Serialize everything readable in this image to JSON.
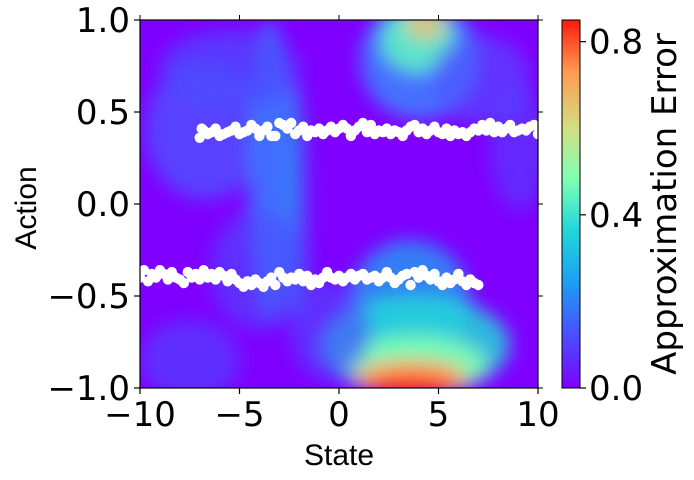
{
  "chart_data": {
    "type": "heatmap",
    "xlabel": "State",
    "ylabel": "Action",
    "xlim": [
      -10,
      10
    ],
    "ylim": [
      -1,
      1
    ],
    "x_ticks": [
      -10,
      -5,
      0,
      5,
      10
    ],
    "x_tick_labels": [
      "−10",
      "−5",
      "0",
      "5",
      "10"
    ],
    "y_ticks": [
      -1.0,
      -0.5,
      0.0,
      0.5,
      1.0
    ],
    "y_tick_labels": [
      "−1.0",
      "−0.5",
      "0.0",
      "0.5",
      "1.0"
    ],
    "colorbar": {
      "label": "Approximation Error",
      "range": [
        0,
        0.85
      ],
      "ticks": [
        0.0,
        0.4,
        0.8
      ],
      "tick_labels": [
        "0.0",
        "0.4",
        "0.8"
      ],
      "colormap": [
        "#7f00ff",
        "#4b4dff",
        "#1e9ff2",
        "#21d8d8",
        "#80ffb4",
        "#d4dd80",
        "#ff9a52",
        "#ff1a0d"
      ]
    },
    "error_hotspots": [
      {
        "x": 3.8,
        "y": -1.0,
        "value": 0.82
      },
      {
        "x": 4.3,
        "y": 1.0,
        "value": 0.55
      },
      {
        "x": -4.5,
        "y": 0.1,
        "value": 0.22
      },
      {
        "x": -3.5,
        "y": -0.85,
        "value": 0.15
      }
    ],
    "scatter_series": [
      {
        "color": "#ffffff",
        "points": [
          [
            -7.0,
            0.36
          ],
          [
            -6.9,
            0.41
          ],
          [
            -6.8,
            0.4
          ],
          [
            -6.6,
            0.38
          ],
          [
            -6.4,
            0.39
          ],
          [
            -6.2,
            0.41
          ],
          [
            -6.0,
            0.37
          ],
          [
            -5.8,
            0.38
          ],
          [
            -5.6,
            0.39
          ],
          [
            -5.4,
            0.4
          ],
          [
            -5.2,
            0.42
          ],
          [
            -5.0,
            0.38
          ],
          [
            -4.8,
            0.39
          ],
          [
            -4.6,
            0.4
          ],
          [
            -4.4,
            0.43
          ],
          [
            -4.2,
            0.41
          ],
          [
            -4.0,
            0.37
          ],
          [
            -3.8,
            0.4
          ],
          [
            -3.6,
            0.42
          ],
          [
            -3.4,
            0.37
          ],
          [
            -3.2,
            0.37
          ],
          [
            -3.0,
            0.44
          ],
          [
            -2.8,
            0.43
          ],
          [
            -2.6,
            0.41
          ],
          [
            -2.4,
            0.44
          ],
          [
            -2.2,
            0.38
          ],
          [
            -2.0,
            0.4
          ],
          [
            -1.8,
            0.42
          ],
          [
            -1.6,
            0.37
          ],
          [
            -1.4,
            0.4
          ],
          [
            -1.2,
            0.39
          ],
          [
            -1.0,
            0.41
          ],
          [
            -0.8,
            0.38
          ],
          [
            -0.6,
            0.4
          ],
          [
            -0.4,
            0.42
          ],
          [
            -0.2,
            0.39
          ],
          [
            0.0,
            0.41
          ],
          [
            0.2,
            0.43
          ],
          [
            0.4,
            0.41
          ],
          [
            0.6,
            0.37
          ],
          [
            0.8,
            0.4
          ],
          [
            1.0,
            0.42
          ],
          [
            1.2,
            0.44
          ],
          [
            1.4,
            0.39
          ],
          [
            1.6,
            0.43
          ],
          [
            1.8,
            0.38
          ],
          [
            2.0,
            0.4
          ],
          [
            2.2,
            0.39
          ],
          [
            2.4,
            0.41
          ],
          [
            2.6,
            0.38
          ],
          [
            2.8,
            0.4
          ],
          [
            3.0,
            0.39
          ],
          [
            3.2,
            0.37
          ],
          [
            3.4,
            0.4
          ],
          [
            3.6,
            0.42
          ],
          [
            3.8,
            0.43
          ],
          [
            4.0,
            0.39
          ],
          [
            4.2,
            0.41
          ],
          [
            4.4,
            0.38
          ],
          [
            4.6,
            0.4
          ],
          [
            4.8,
            0.42
          ],
          [
            5.0,
            0.39
          ],
          [
            5.2,
            0.38
          ],
          [
            5.4,
            0.41
          ],
          [
            5.6,
            0.37
          ],
          [
            5.8,
            0.4
          ],
          [
            6.0,
            0.38
          ],
          [
            6.2,
            0.39
          ],
          [
            6.4,
            0.37
          ],
          [
            6.6,
            0.39
          ],
          [
            6.8,
            0.41
          ],
          [
            7.0,
            0.4
          ],
          [
            7.2,
            0.43
          ],
          [
            7.4,
            0.4
          ],
          [
            7.6,
            0.44
          ],
          [
            7.8,
            0.39
          ],
          [
            8.0,
            0.42
          ],
          [
            8.2,
            0.39
          ],
          [
            8.4,
            0.41
          ],
          [
            8.6,
            0.43
          ],
          [
            8.8,
            0.39
          ],
          [
            9.0,
            0.4
          ],
          [
            9.2,
            0.41
          ],
          [
            9.4,
            0.4
          ],
          [
            9.6,
            0.42
          ],
          [
            9.8,
            0.43
          ],
          [
            10.0,
            0.38
          ]
        ]
      },
      {
        "color": "#ffffff",
        "points": [
          [
            -10.0,
            -0.4
          ],
          [
            -9.8,
            -0.36
          ],
          [
            -9.6,
            -0.42
          ],
          [
            -9.4,
            -0.38
          ],
          [
            -9.2,
            -0.4
          ],
          [
            -9.0,
            -0.36
          ],
          [
            -8.8,
            -0.38
          ],
          [
            -8.6,
            -0.41
          ],
          [
            -8.4,
            -0.37
          ],
          [
            -8.2,
            -0.4
          ],
          [
            -8.0,
            -0.41
          ],
          [
            -7.8,
            -0.43
          ],
          [
            -7.6,
            -0.37
          ],
          [
            -7.4,
            -0.4
          ],
          [
            -7.2,
            -0.38
          ],
          [
            -7.0,
            -0.41
          ],
          [
            -6.8,
            -0.36
          ],
          [
            -6.6,
            -0.4
          ],
          [
            -6.4,
            -0.38
          ],
          [
            -6.2,
            -0.41
          ],
          [
            -6.0,
            -0.37
          ],
          [
            -5.8,
            -0.39
          ],
          [
            -5.6,
            -0.42
          ],
          [
            -5.4,
            -0.38
          ],
          [
            -5.2,
            -0.41
          ],
          [
            -5.0,
            -0.43
          ],
          [
            -4.8,
            -0.45
          ],
          [
            -4.6,
            -0.42
          ],
          [
            -4.4,
            -0.44
          ],
          [
            -4.2,
            -0.41
          ],
          [
            -4.0,
            -0.43
          ],
          [
            -3.8,
            -0.45
          ],
          [
            -3.6,
            -0.42
          ],
          [
            -3.4,
            -0.4
          ],
          [
            -3.2,
            -0.44
          ],
          [
            -3.0,
            -0.37
          ],
          [
            -2.8,
            -0.4
          ],
          [
            -2.6,
            -0.42
          ],
          [
            -2.4,
            -0.4
          ],
          [
            -2.2,
            -0.41
          ],
          [
            -2.0,
            -0.38
          ],
          [
            -1.8,
            -0.42
          ],
          [
            -1.6,
            -0.39
          ],
          [
            -1.4,
            -0.44
          ],
          [
            -1.2,
            -0.41
          ],
          [
            -1.0,
            -0.43
          ],
          [
            -0.8,
            -0.4
          ],
          [
            -0.6,
            -0.37
          ],
          [
            -0.4,
            -0.4
          ],
          [
            -0.2,
            -0.41
          ],
          [
            0.0,
            -0.39
          ],
          [
            0.2,
            -0.42
          ],
          [
            0.4,
            -0.4
          ],
          [
            0.6,
            -0.38
          ],
          [
            0.8,
            -0.41
          ],
          [
            1.0,
            -0.39
          ],
          [
            1.2,
            -0.38
          ],
          [
            1.4,
            -0.41
          ],
          [
            1.6,
            -0.4
          ],
          [
            1.8,
            -0.39
          ],
          [
            2.0,
            -0.42
          ],
          [
            2.2,
            -0.4
          ],
          [
            2.4,
            -0.37
          ],
          [
            2.6,
            -0.4
          ],
          [
            2.8,
            -0.43
          ],
          [
            3.0,
            -0.41
          ],
          [
            3.2,
            -0.39
          ],
          [
            3.4,
            -0.38
          ],
          [
            3.6,
            -0.44
          ],
          [
            3.8,
            -0.37
          ],
          [
            4.0,
            -0.4
          ],
          [
            4.2,
            -0.36
          ],
          [
            4.4,
            -0.39
          ],
          [
            4.6,
            -0.41
          ],
          [
            4.8,
            -0.38
          ],
          [
            5.0,
            -0.42
          ],
          [
            5.2,
            -0.44
          ],
          [
            5.4,
            -0.4
          ],
          [
            5.6,
            -0.43
          ],
          [
            5.8,
            -0.41
          ],
          [
            6.0,
            -0.38
          ],
          [
            6.2,
            -0.42
          ],
          [
            6.4,
            -0.44
          ],
          [
            6.6,
            -0.41
          ],
          [
            6.8,
            -0.43
          ],
          [
            7.0,
            -0.44
          ]
        ]
      }
    ]
  }
}
